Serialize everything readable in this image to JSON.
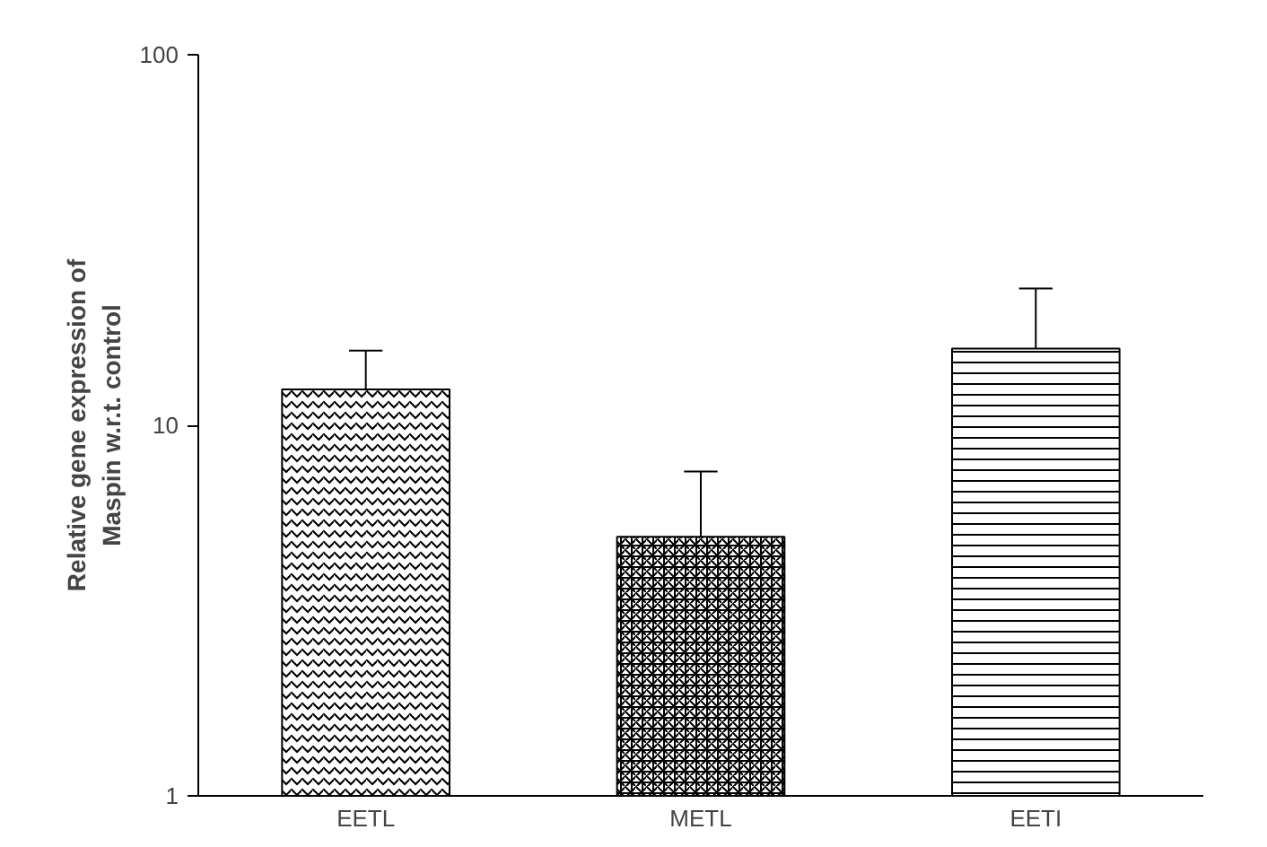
{
  "chart_data": {
    "type": "bar",
    "ylabel": "Relative gene expression of\nMaspin w.r.t. control",
    "categories": [
      "EETL",
      "METL",
      "EETI"
    ],
    "values": [
      12.5,
      5.0,
      16.1
    ],
    "errors": [
      [
        12.5,
        15.9
      ],
      [
        5.0,
        7.5
      ],
      [
        16.1,
        23.4
      ]
    ],
    "colors": [
      "#ffffff",
      "#ffffff",
      "#ffffff"
    ],
    "log": "y",
    "ylim": [
      1,
      100
    ],
    "yticks": [
      1,
      10,
      100
    ],
    "grid": false
  }
}
